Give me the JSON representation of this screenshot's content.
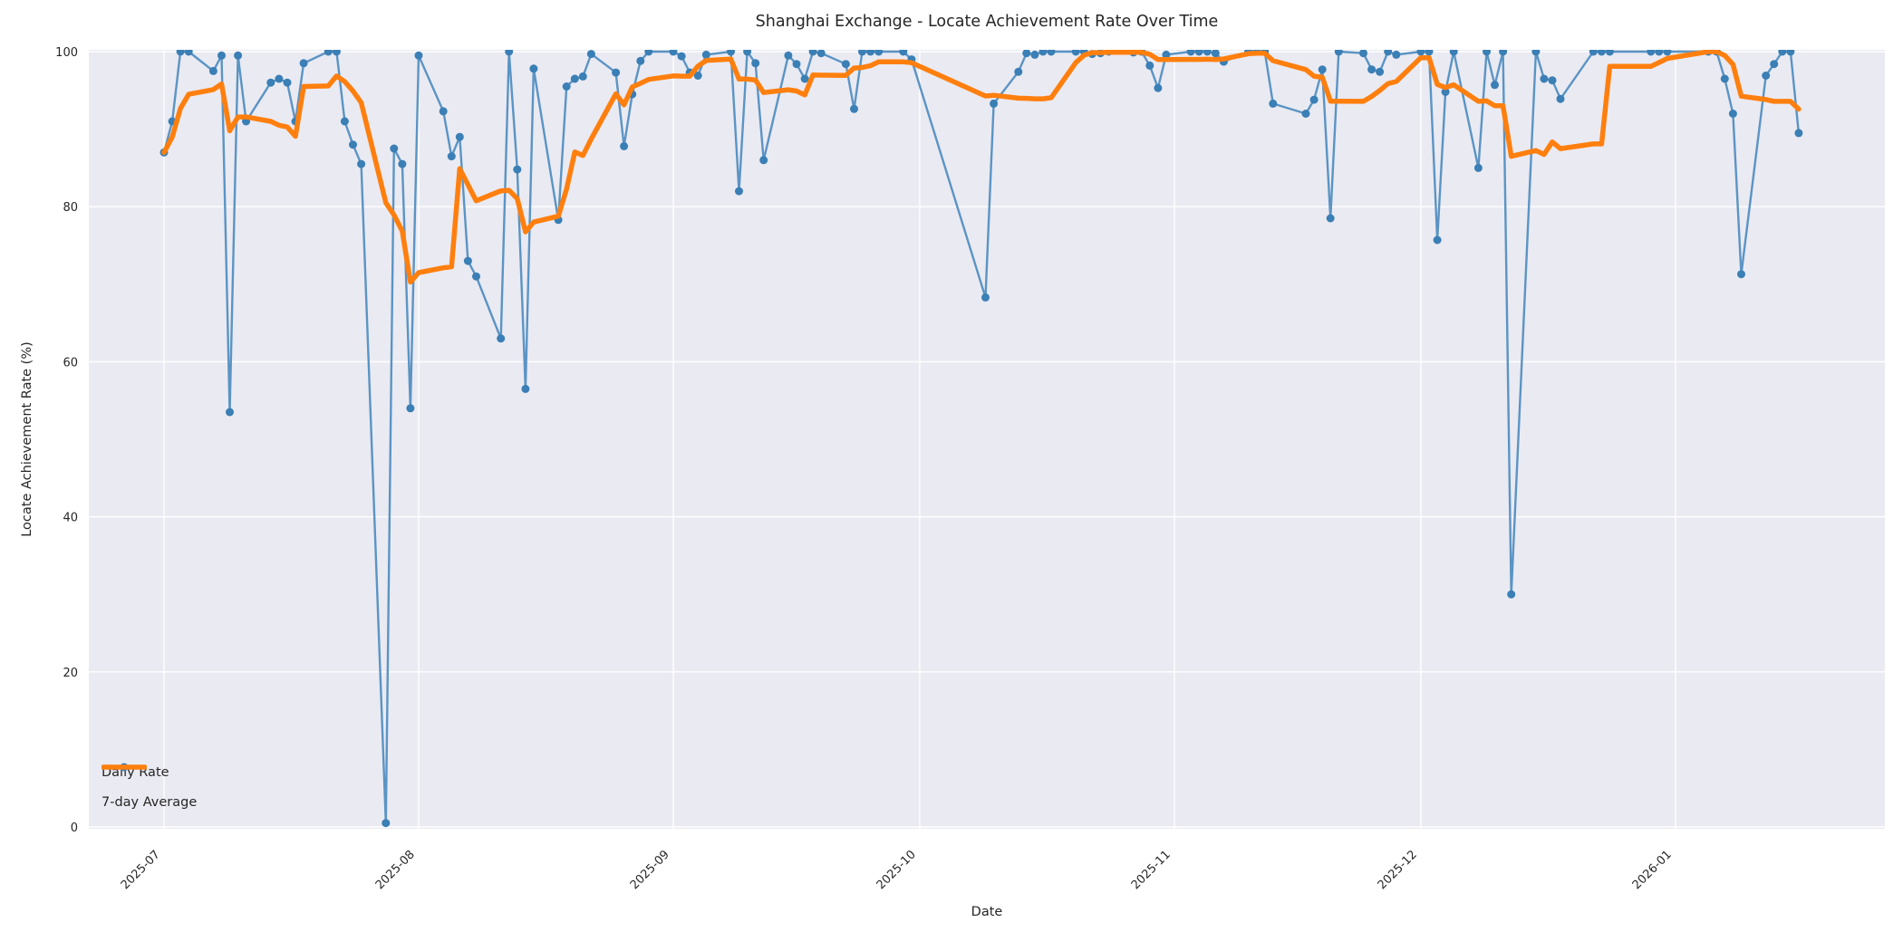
{
  "window": {
    "title": "Shanghai Exchange - Locate Achievement Rate Over Time"
  },
  "axes": {
    "xlabel": "Date",
    "ylabel": "Locate Achievement Rate (%)"
  },
  "legend": {
    "daily_label": "Daily Rate",
    "avg_label": "7-day Average"
  },
  "colors": {
    "plot_background": "#eaeaf2",
    "grid": "#ffffff",
    "daily_line": "#5b94c4",
    "daily_marker": "#3a7fb5",
    "avg_line": "#ff7f0e",
    "text": "#262626"
  },
  "chart_data": {
    "type": "line",
    "title": "Shanghai Exchange - Locate Achievement Rate Over Time",
    "xlabel": "Date",
    "ylabel": "Locate Achievement Rate (%)",
    "ylim": [
      0,
      100
    ],
    "grid": true,
    "legend_position": "lower left",
    "x_ticks": [
      {
        "date": "2025-07-01",
        "label": "2025-07"
      },
      {
        "date": "2025-08-01",
        "label": "2025-08"
      },
      {
        "date": "2025-09-01",
        "label": "2025-09"
      },
      {
        "date": "2025-10-01",
        "label": "2025-10"
      },
      {
        "date": "2025-11-01",
        "label": "2025-11"
      },
      {
        "date": "2025-12-01",
        "label": "2025-12"
      },
      {
        "date": "2026-01-01",
        "label": "2026-01"
      }
    ],
    "y_ticks": [
      0,
      20,
      40,
      60,
      80,
      100
    ],
    "series": [
      {
        "name": "Daily Rate",
        "type": "line+marker",
        "points": [
          [
            "2025-07-01",
            87.0
          ],
          [
            "2025-07-02",
            91.0
          ],
          [
            "2025-07-03",
            100
          ],
          [
            "2025-07-04",
            100
          ],
          [
            "2025-07-07",
            97.5
          ],
          [
            "2025-07-08",
            99.5
          ],
          [
            "2025-07-09",
            53.5
          ],
          [
            "2025-07-10",
            99.5
          ],
          [
            "2025-07-11",
            91.0
          ],
          [
            "2025-07-14",
            96.0
          ],
          [
            "2025-07-15",
            96.5
          ],
          [
            "2025-07-16",
            96.0
          ],
          [
            "2025-07-17",
            91.0
          ],
          [
            "2025-07-18",
            98.5
          ],
          [
            "2025-07-21",
            100
          ],
          [
            "2025-07-22",
            100
          ],
          [
            "2025-07-23",
            91.0
          ],
          [
            "2025-07-24",
            88.0
          ],
          [
            "2025-07-25",
            85.5
          ],
          [
            "2025-07-28",
            0.5
          ],
          [
            "2025-07-29",
            87.5
          ],
          [
            "2025-07-30",
            85.5
          ],
          [
            "2025-07-31",
            54.0
          ],
          [
            "2025-08-01",
            99.5
          ],
          [
            "2025-08-04",
            92.3
          ],
          [
            "2025-08-05",
            86.5
          ],
          [
            "2025-08-06",
            89.0
          ],
          [
            "2025-08-07",
            73.0
          ],
          [
            "2025-08-08",
            71.0
          ],
          [
            "2025-08-11",
            63.0
          ],
          [
            "2025-08-12",
            100
          ],
          [
            "2025-08-13",
            84.8
          ],
          [
            "2025-08-14",
            56.5
          ],
          [
            "2025-08-15",
            97.8
          ],
          [
            "2025-08-18",
            78.3
          ],
          [
            "2025-08-19",
            95.5
          ],
          [
            "2025-08-20",
            96.5
          ],
          [
            "2025-08-21",
            96.8
          ],
          [
            "2025-08-22",
            99.7
          ],
          [
            "2025-08-25",
            97.3
          ],
          [
            "2025-08-26",
            87.8
          ],
          [
            "2025-08-27",
            94.5
          ],
          [
            "2025-08-28",
            98.8
          ],
          [
            "2025-08-29",
            100
          ],
          [
            "2025-09-01",
            100
          ],
          [
            "2025-09-02",
            99.4
          ],
          [
            "2025-09-03",
            97.3
          ],
          [
            "2025-09-04",
            96.9
          ],
          [
            "2025-09-05",
            99.6
          ],
          [
            "2025-09-08",
            100
          ],
          [
            "2025-09-09",
            82.0
          ],
          [
            "2025-09-10",
            100
          ],
          [
            "2025-09-11",
            98.5
          ],
          [
            "2025-09-12",
            86.0
          ],
          [
            "2025-09-15",
            99.5
          ],
          [
            "2025-09-16",
            98.4
          ],
          [
            "2025-09-17",
            96.5
          ],
          [
            "2025-09-18",
            100
          ],
          [
            "2025-09-19",
            99.8
          ],
          [
            "2025-09-22",
            98.4
          ],
          [
            "2025-09-23",
            92.6
          ],
          [
            "2025-09-24",
            100
          ],
          [
            "2025-09-25",
            100
          ],
          [
            "2025-09-26",
            100
          ],
          [
            "2025-09-29",
            100
          ],
          [
            "2025-09-30",
            99.0
          ],
          [
            "2025-10-09",
            68.3
          ],
          [
            "2025-10-10",
            93.3
          ],
          [
            "2025-10-13",
            97.4
          ],
          [
            "2025-10-14",
            99.8
          ],
          [
            "2025-10-15",
            99.6
          ],
          [
            "2025-10-16",
            100
          ],
          [
            "2025-10-17",
            100
          ],
          [
            "2025-10-20",
            100
          ],
          [
            "2025-10-21",
            100
          ],
          [
            "2025-10-22",
            99.7
          ],
          [
            "2025-10-23",
            99.8
          ],
          [
            "2025-10-24",
            100
          ],
          [
            "2025-10-27",
            99.9
          ],
          [
            "2025-10-28",
            100
          ],
          [
            "2025-10-29",
            98.2
          ],
          [
            "2025-10-30",
            95.3
          ],
          [
            "2025-10-31",
            99.6
          ],
          [
            "2025-11-03",
            100
          ],
          [
            "2025-11-04",
            100
          ],
          [
            "2025-11-05",
            100
          ],
          [
            "2025-11-06",
            99.8
          ],
          [
            "2025-11-07",
            98.7
          ],
          [
            "2025-11-10",
            100
          ],
          [
            "2025-11-11",
            100
          ],
          [
            "2025-11-12",
            100
          ],
          [
            "2025-11-13",
            93.3
          ],
          [
            "2025-11-17",
            92.0
          ],
          [
            "2025-11-18",
            93.8
          ],
          [
            "2025-11-19",
            97.7
          ],
          [
            "2025-11-20",
            78.5
          ],
          [
            "2025-11-21",
            100
          ],
          [
            "2025-11-24",
            99.8
          ],
          [
            "2025-11-25",
            97.7
          ],
          [
            "2025-11-26",
            97.4
          ],
          [
            "2025-11-27",
            100
          ],
          [
            "2025-11-28",
            99.6
          ],
          [
            "2025-12-01",
            100
          ],
          [
            "2025-12-02",
            100
          ],
          [
            "2025-12-03",
            75.7
          ],
          [
            "2025-12-04",
            94.8
          ],
          [
            "2025-12-05",
            100
          ],
          [
            "2025-12-08",
            85.0
          ],
          [
            "2025-12-09",
            100
          ],
          [
            "2025-12-10",
            95.7
          ],
          [
            "2025-12-11",
            100
          ],
          [
            "2025-12-12",
            30.0
          ],
          [
            "2025-12-15",
            100
          ],
          [
            "2025-12-16",
            96.5
          ],
          [
            "2025-12-17",
            96.3
          ],
          [
            "2025-12-18",
            93.9
          ],
          [
            "2025-12-22",
            100
          ],
          [
            "2025-12-23",
            100
          ],
          [
            "2025-12-24",
            100
          ],
          [
            "2025-12-29",
            100
          ],
          [
            "2025-12-30",
            100
          ],
          [
            "2025-12-31",
            100
          ],
          [
            "2026-01-05",
            100
          ],
          [
            "2026-01-06",
            100
          ],
          [
            "2026-01-07",
            96.5
          ],
          [
            "2026-01-08",
            92.0
          ],
          [
            "2026-01-09",
            71.3
          ],
          [
            "2026-01-12",
            96.9
          ],
          [
            "2026-01-13",
            98.4
          ],
          [
            "2026-01-14",
            100
          ],
          [
            "2026-01-15",
            100
          ],
          [
            "2026-01-16",
            89.5
          ]
        ]
      },
      {
        "name": "7-day Average",
        "type": "line",
        "derived": "rolling_mean_window_7_min_periods_1_of_Daily_Rate"
      }
    ]
  }
}
